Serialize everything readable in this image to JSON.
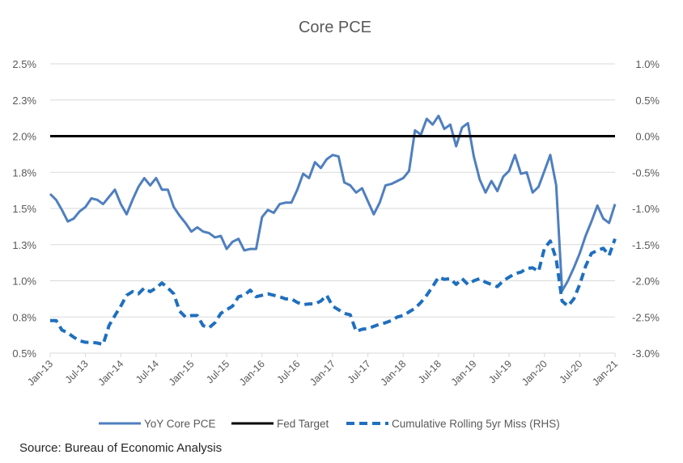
{
  "chart_data": {
    "type": "line",
    "title": "Core PCE",
    "xlabel": "",
    "ylabel": "",
    "y_left": {
      "range": [
        0.5,
        2.5
      ],
      "step": 0.25,
      "tick_labels": [
        "0.5%",
        "0.8%",
        "1.0%",
        "1.3%",
        "1.5%",
        "1.8%",
        "2.0%",
        "2.3%",
        "2.5%"
      ]
    },
    "y_right": {
      "range": [
        -3.0,
        1.0
      ],
      "step": 0.5,
      "tick_labels": [
        "-3.0%",
        "-2.5%",
        "-2.0%",
        "-1.5%",
        "-1.0%",
        "-0.5%",
        "0.0%",
        "0.5%",
        "1.0%"
      ]
    },
    "x_start": "Jan-13",
    "x_months": 97,
    "x_tick_labels": [
      "Jan-13",
      "Jul-13",
      "Jan-14",
      "Jul-14",
      "Jan-15",
      "Jul-15",
      "Jan-16",
      "Jul-16",
      "Jan-17",
      "Jul-17",
      "Jan-18",
      "Jul-18",
      "Jan-19",
      "Jul-19",
      "Jan-20",
      "Jul-20",
      "Jan-21"
    ],
    "grid": true,
    "legend_position": "bottom",
    "series": [
      {
        "name": "YoY Core PCE",
        "axis": "left",
        "style": "solid",
        "color": "#4F7FBF",
        "values": [
          1.6,
          1.56,
          1.49,
          1.41,
          1.43,
          1.48,
          1.51,
          1.57,
          1.56,
          1.53,
          1.58,
          1.63,
          1.53,
          1.46,
          1.56,
          1.65,
          1.71,
          1.66,
          1.71,
          1.63,
          1.63,
          1.51,
          1.45,
          1.4,
          1.34,
          1.37,
          1.34,
          1.33,
          1.3,
          1.31,
          1.22,
          1.27,
          1.29,
          1.21,
          1.22,
          1.22,
          1.44,
          1.49,
          1.47,
          1.53,
          1.54,
          1.54,
          1.63,
          1.74,
          1.71,
          1.82,
          1.78,
          1.84,
          1.87,
          1.86,
          1.68,
          1.66,
          1.61,
          1.64,
          1.55,
          1.46,
          1.54,
          1.66,
          1.67,
          1.69,
          1.71,
          1.76,
          2.04,
          2.01,
          2.12,
          2.08,
          2.14,
          2.05,
          2.08,
          1.93,
          2.06,
          2.09,
          1.86,
          1.7,
          1.61,
          1.69,
          1.62,
          1.72,
          1.76,
          1.87,
          1.74,
          1.75,
          1.61,
          1.65,
          1.76,
          1.87,
          1.66,
          0.93,
          1.0,
          1.09,
          1.19,
          1.31,
          1.41,
          1.52,
          1.43,
          1.4,
          1.53
        ]
      },
      {
        "name": "Fed Target",
        "axis": "left",
        "style": "solid",
        "color": "#000000",
        "values": [
          2.0,
          2.0
        ]
      },
      {
        "name": "Cumulative Rolling 5yr Miss (RHS)",
        "axis": "right",
        "style": "dashed",
        "color": "#1F6FBF",
        "values": [
          -2.55,
          -2.55,
          -2.68,
          -2.72,
          -2.78,
          -2.83,
          -2.85,
          -2.85,
          -2.86,
          -2.88,
          -2.62,
          -2.48,
          -2.35,
          -2.2,
          -2.15,
          -2.18,
          -2.1,
          -2.15,
          -2.1,
          -2.03,
          -2.1,
          -2.18,
          -2.42,
          -2.5,
          -2.48,
          -2.48,
          -2.62,
          -2.65,
          -2.58,
          -2.45,
          -2.4,
          -2.35,
          -2.22,
          -2.2,
          -2.13,
          -2.22,
          -2.2,
          -2.18,
          -2.2,
          -2.22,
          -2.25,
          -2.25,
          -2.3,
          -2.33,
          -2.32,
          -2.32,
          -2.28,
          -2.2,
          -2.35,
          -2.4,
          -2.45,
          -2.47,
          -2.7,
          -2.67,
          -2.66,
          -2.63,
          -2.6,
          -2.58,
          -2.55,
          -2.5,
          -2.48,
          -2.43,
          -2.38,
          -2.3,
          -2.2,
          -2.08,
          -1.95,
          -1.98,
          -1.97,
          -2.05,
          -1.97,
          -2.05,
          -2.0,
          -1.97,
          -2.02,
          -2.05,
          -2.08,
          -2.0,
          -1.95,
          -1.9,
          -1.88,
          -1.83,
          -1.82,
          -1.87,
          -1.55,
          -1.45,
          -1.7,
          -2.28,
          -2.35,
          -2.25,
          -2.05,
          -1.8,
          -1.62,
          -1.58,
          -1.55,
          -1.65,
          -1.42
        ]
      }
    ],
    "source": "Source: Bureau of Economic Analysis"
  }
}
